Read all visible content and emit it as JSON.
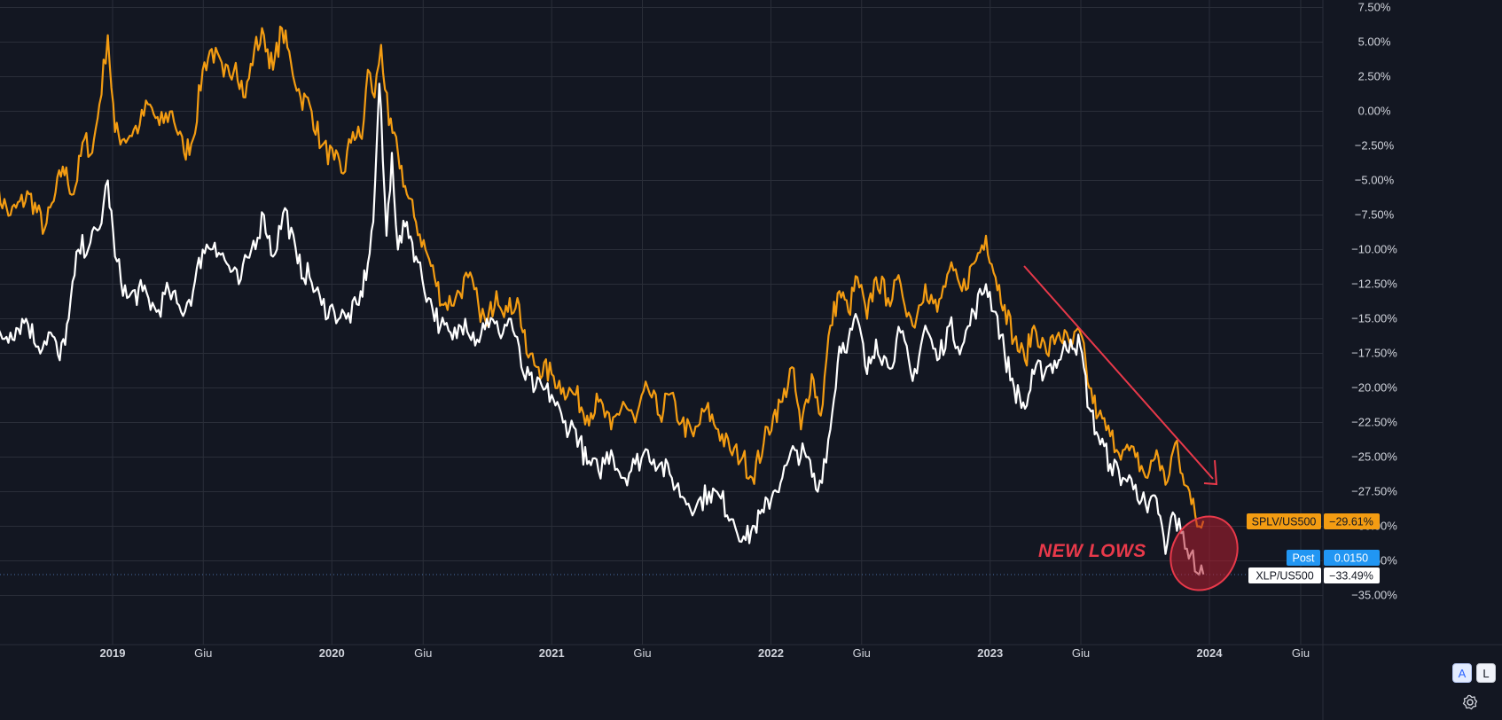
{
  "chart_data": {
    "type": "line",
    "ylim": [
      -37,
      7.5
    ],
    "y_ticks": [
      "7.50%",
      "5.00%",
      "2.50%",
      "0.00%",
      "−2.50%",
      "−5.00%",
      "−7.50%",
      "−10.00%",
      "−12.50%",
      "−15.00%",
      "−17.50%",
      "−20.00%",
      "−22.50%",
      "−25.00%",
      "−27.50%",
      "−30.00%",
      "−32.50%",
      "−35.00%"
    ],
    "y_tick_values": [
      7.5,
      5,
      2.5,
      0,
      -2.5,
      -5,
      -7.5,
      -10,
      -12.5,
      -15,
      -17.5,
      -20,
      -22.5,
      -25,
      -27.5,
      -30,
      -32.5,
      -35
    ],
    "x_range": [
      "2018-06-15",
      "2024-07-15"
    ],
    "x_ticks": [
      {
        "label": "2019",
        "date": "2019-01-01",
        "bold": true
      },
      {
        "label": "Giu",
        "date": "2019-06-01",
        "bold": false
      },
      {
        "label": "2020",
        "date": "2020-01-01",
        "bold": true
      },
      {
        "label": "Giu",
        "date": "2020-06-01",
        "bold": false
      },
      {
        "label": "2021",
        "date": "2021-01-01",
        "bold": true
      },
      {
        "label": "Giu",
        "date": "2021-06-01",
        "bold": false
      },
      {
        "label": "2022",
        "date": "2022-01-01",
        "bold": true
      },
      {
        "label": "Giu",
        "date": "2022-06-01",
        "bold": false
      },
      {
        "label": "2023",
        "date": "2023-01-01",
        "bold": true
      },
      {
        "label": "Giu",
        "date": "2023-06-01",
        "bold": false
      },
      {
        "label": "2024",
        "date": "2024-01-01",
        "bold": true
      },
      {
        "label": "Giu",
        "date": "2024-06-01",
        "bold": false
      }
    ],
    "grid": true,
    "series": [
      {
        "name": "SPLV/US500",
        "color": "#f39c12",
        "last_value": "−29.61%",
        "points": [
          [
            "2018-06-18",
            -5.5
          ],
          [
            "2018-07-15",
            -7.5
          ],
          [
            "2018-08-15",
            -6.0
          ],
          [
            "2018-09-10",
            -8.5
          ],
          [
            "2018-09-25",
            -6.5
          ],
          [
            "2018-10-10",
            -4.0
          ],
          [
            "2018-10-28",
            -6.0
          ],
          [
            "2018-11-15",
            -2.0
          ],
          [
            "2018-11-28",
            -3.0
          ],
          [
            "2018-12-10",
            0.5
          ],
          [
            "2018-12-24",
            5.5
          ],
          [
            "2019-01-05",
            -1.5
          ],
          [
            "2019-01-20",
            -2.0
          ],
          [
            "2019-02-15",
            -1.0
          ],
          [
            "2019-03-01",
            0.5
          ],
          [
            "2019-03-20",
            -1.0
          ],
          [
            "2019-04-10",
            0.0
          ],
          [
            "2019-04-30",
            -3.0
          ],
          [
            "2019-05-15",
            -2.0
          ],
          [
            "2019-05-31",
            3.0
          ],
          [
            "2019-06-15",
            4.5
          ],
          [
            "2019-07-05",
            2.5
          ],
          [
            "2019-07-25",
            3.5
          ],
          [
            "2019-08-10",
            1.0
          ],
          [
            "2019-08-25",
            4.5
          ],
          [
            "2019-09-10",
            5.5
          ],
          [
            "2019-09-25",
            3.0
          ],
          [
            "2019-10-10",
            6.0
          ],
          [
            "2019-10-25",
            3.5
          ],
          [
            "2019-11-10",
            1.0
          ],
          [
            "2019-11-25",
            0.5
          ],
          [
            "2019-12-15",
            -2.5
          ],
          [
            "2020-01-05",
            -3.5
          ],
          [
            "2020-01-20",
            -4.5
          ],
          [
            "2020-02-05",
            -1.5
          ],
          [
            "2020-02-20",
            -2.0
          ],
          [
            "2020-03-01",
            3.0
          ],
          [
            "2020-03-12",
            1.0
          ],
          [
            "2020-03-23",
            4.8
          ],
          [
            "2020-04-05",
            -1.0
          ],
          [
            "2020-04-20",
            -3.0
          ],
          [
            "2020-05-05",
            -6.0
          ],
          [
            "2020-05-20",
            -8.0
          ],
          [
            "2020-06-05",
            -10.0
          ],
          [
            "2020-06-20",
            -12.0
          ],
          [
            "2020-07-05",
            -14.0
          ],
          [
            "2020-07-25",
            -13.5
          ],
          [
            "2020-08-15",
            -12.0
          ],
          [
            "2020-09-01",
            -14.0
          ],
          [
            "2020-09-15",
            -15.5
          ],
          [
            "2020-10-01",
            -13.0
          ],
          [
            "2020-10-20",
            -14.5
          ],
          [
            "2020-11-05",
            -13.5
          ],
          [
            "2020-11-20",
            -17.5
          ],
          [
            "2020-12-10",
            -18.5
          ],
          [
            "2021-01-01",
            -19.0
          ],
          [
            "2021-01-20",
            -20.0
          ],
          [
            "2021-02-10",
            -20.5
          ],
          [
            "2021-03-01",
            -22.0
          ],
          [
            "2021-03-20",
            -21.0
          ],
          [
            "2021-04-10",
            -23.0
          ],
          [
            "2021-04-30",
            -21.0
          ],
          [
            "2021-05-20",
            -22.5
          ],
          [
            "2021-06-10",
            -20.0
          ],
          [
            "2021-06-30",
            -22.0
          ],
          [
            "2021-07-15",
            -20.5
          ],
          [
            "2021-08-05",
            -22.5
          ],
          [
            "2021-08-25",
            -23.5
          ],
          [
            "2021-09-15",
            -21.5
          ],
          [
            "2021-10-05",
            -23.0
          ],
          [
            "2021-10-25",
            -24.5
          ],
          [
            "2021-11-15",
            -25.0
          ],
          [
            "2021-12-01",
            -26.5
          ],
          [
            "2021-12-20",
            -24.0
          ],
          [
            "2022-01-05",
            -22.0
          ],
          [
            "2022-01-20",
            -21.0
          ],
          [
            "2022-02-05",
            -18.5
          ],
          [
            "2022-02-20",
            -23.0
          ],
          [
            "2022-03-10",
            -19.0
          ],
          [
            "2022-03-25",
            -22.0
          ],
          [
            "2022-04-10",
            -15.5
          ],
          [
            "2022-04-25",
            -13.0
          ],
          [
            "2022-05-10",
            -14.5
          ],
          [
            "2022-05-25",
            -12.0
          ],
          [
            "2022-06-10",
            -15.0
          ],
          [
            "2022-06-25",
            -12.0
          ],
          [
            "2022-07-15",
            -13.5
          ],
          [
            "2022-08-05",
            -12.5
          ],
          [
            "2022-08-25",
            -15.5
          ],
          [
            "2022-09-15",
            -12.5
          ],
          [
            "2022-10-05",
            -14.5
          ],
          [
            "2022-10-25",
            -11.5
          ],
          [
            "2022-11-15",
            -13.0
          ],
          [
            "2022-12-05",
            -11.0
          ],
          [
            "2022-12-25",
            -9.0
          ],
          [
            "2023-01-10",
            -12.0
          ],
          [
            "2023-01-25",
            -14.0
          ],
          [
            "2023-02-10",
            -16.5
          ],
          [
            "2023-02-28",
            -18.0
          ],
          [
            "2023-03-15",
            -15.5
          ],
          [
            "2023-04-05",
            -17.5
          ],
          [
            "2023-04-25",
            -16.0
          ],
          [
            "2023-05-15",
            -17.0
          ],
          [
            "2023-05-31",
            -16.0
          ],
          [
            "2023-06-15",
            -20.0
          ],
          [
            "2023-06-30",
            -22.0
          ],
          [
            "2023-07-20",
            -23.5
          ],
          [
            "2023-08-10",
            -24.5
          ],
          [
            "2023-08-31",
            -25.0
          ],
          [
            "2023-09-20",
            -26.5
          ],
          [
            "2023-10-05",
            -24.5
          ],
          [
            "2023-10-20",
            -27.0
          ],
          [
            "2023-11-05",
            -24.0
          ],
          [
            "2023-11-20",
            -27.0
          ],
          [
            "2023-12-05",
            -28.0
          ],
          [
            "2023-12-15",
            -30.0
          ],
          [
            "2023-12-22",
            -29.61
          ]
        ]
      },
      {
        "name": "XLP/US500",
        "color": "#ffffff",
        "last_value": "−33.49%",
        "points": [
          [
            "2018-06-18",
            -16.5
          ],
          [
            "2018-07-15",
            -16.0
          ],
          [
            "2018-08-10",
            -15.0
          ],
          [
            "2018-08-30",
            -17.0
          ],
          [
            "2018-09-20",
            -16.0
          ],
          [
            "2018-10-05",
            -18.0
          ],
          [
            "2018-10-20",
            -15.0
          ],
          [
            "2018-11-05",
            -10.0
          ],
          [
            "2018-11-25",
            -9.5
          ],
          [
            "2018-12-10",
            -8.5
          ],
          [
            "2018-12-24",
            -5.0
          ],
          [
            "2019-01-05",
            -10.5
          ],
          [
            "2019-01-25",
            -13.5
          ],
          [
            "2019-02-20",
            -13.0
          ],
          [
            "2019-03-15",
            -14.5
          ],
          [
            "2019-04-05",
            -13.0
          ],
          [
            "2019-04-25",
            -14.5
          ],
          [
            "2019-05-15",
            -13.0
          ],
          [
            "2019-05-31",
            -10.0
          ],
          [
            "2019-06-20",
            -9.5
          ],
          [
            "2019-07-10",
            -11.0
          ],
          [
            "2019-07-30",
            -12.5
          ],
          [
            "2019-08-20",
            -10.0
          ],
          [
            "2019-09-10",
            -7.5
          ],
          [
            "2019-09-25",
            -10.5
          ],
          [
            "2019-10-15",
            -7.0
          ],
          [
            "2019-11-05",
            -11.0
          ],
          [
            "2019-11-25",
            -12.0
          ],
          [
            "2019-12-15",
            -14.0
          ],
          [
            "2020-01-05",
            -14.5
          ],
          [
            "2020-01-25",
            -15.0
          ],
          [
            "2020-02-15",
            -14.0
          ],
          [
            "2020-03-01",
            -11.0
          ],
          [
            "2020-03-10",
            -8.0
          ],
          [
            "2020-03-20",
            2.0
          ],
          [
            "2020-04-01",
            -9.0
          ],
          [
            "2020-04-10",
            -3.0
          ],
          [
            "2020-04-20",
            -10.0
          ],
          [
            "2020-05-05",
            -8.0
          ],
          [
            "2020-05-20",
            -10.5
          ],
          [
            "2020-06-10",
            -13.5
          ],
          [
            "2020-06-30",
            -15.5
          ],
          [
            "2020-07-20",
            -16.5
          ],
          [
            "2020-08-10",
            -15.0
          ],
          [
            "2020-08-30",
            -16.5
          ],
          [
            "2020-09-15",
            -15.0
          ],
          [
            "2020-10-05",
            -16.0
          ],
          [
            "2020-10-25",
            -15.0
          ],
          [
            "2020-11-15",
            -19.0
          ],
          [
            "2020-12-05",
            -20.0
          ],
          [
            "2021-01-01",
            -20.5
          ],
          [
            "2021-01-20",
            -22.5
          ],
          [
            "2021-02-10",
            -23.0
          ],
          [
            "2021-03-01",
            -25.5
          ],
          [
            "2021-03-20",
            -26.0
          ],
          [
            "2021-04-10",
            -24.5
          ],
          [
            "2021-04-30",
            -26.5
          ],
          [
            "2021-05-20",
            -25.5
          ],
          [
            "2021-06-10",
            -24.5
          ],
          [
            "2021-06-30",
            -25.5
          ],
          [
            "2021-07-20",
            -26.5
          ],
          [
            "2021-08-10",
            -28.0
          ],
          [
            "2021-08-30",
            -28.5
          ],
          [
            "2021-09-20",
            -27.5
          ],
          [
            "2021-10-10",
            -28.0
          ],
          [
            "2021-10-30",
            -29.5
          ],
          [
            "2021-11-20",
            -31.0
          ],
          [
            "2021-12-05",
            -30.0
          ],
          [
            "2021-12-20",
            -29.0
          ],
          [
            "2022-01-05",
            -27.5
          ],
          [
            "2022-01-20",
            -26.5
          ],
          [
            "2022-02-10",
            -24.5
          ],
          [
            "2022-03-01",
            -25.0
          ],
          [
            "2022-03-20",
            -27.5
          ],
          [
            "2022-04-10",
            -23.0
          ],
          [
            "2022-04-25",
            -17.0
          ],
          [
            "2022-05-10",
            -16.5
          ],
          [
            "2022-05-25",
            -15.0
          ],
          [
            "2022-06-10",
            -19.0
          ],
          [
            "2022-06-25",
            -16.5
          ],
          [
            "2022-07-15",
            -18.5
          ],
          [
            "2022-08-05",
            -16.0
          ],
          [
            "2022-08-25",
            -19.5
          ],
          [
            "2022-09-15",
            -15.5
          ],
          [
            "2022-10-05",
            -18.0
          ],
          [
            "2022-10-25",
            -15.5
          ],
          [
            "2022-11-15",
            -17.0
          ],
          [
            "2022-12-05",
            -14.5
          ],
          [
            "2022-12-25",
            -12.5
          ],
          [
            "2023-01-10",
            -14.5
          ],
          [
            "2023-01-25",
            -17.5
          ],
          [
            "2023-02-10",
            -20.0
          ],
          [
            "2023-02-28",
            -21.5
          ],
          [
            "2023-03-15",
            -19.0
          ],
          [
            "2023-04-05",
            -18.5
          ],
          [
            "2023-04-25",
            -18.0
          ],
          [
            "2023-05-15",
            -16.5
          ],
          [
            "2023-05-31",
            -17.0
          ],
          [
            "2023-06-15",
            -21.5
          ],
          [
            "2023-06-30",
            -23.5
          ],
          [
            "2023-07-20",
            -25.5
          ],
          [
            "2023-08-10",
            -26.5
          ],
          [
            "2023-08-31",
            -27.0
          ],
          [
            "2023-09-20",
            -29.0
          ],
          [
            "2023-10-05",
            -28.0
          ],
          [
            "2023-10-20",
            -32.0
          ],
          [
            "2023-11-01",
            -29.0
          ],
          [
            "2023-11-15",
            -30.5
          ],
          [
            "2023-12-01",
            -32.0
          ],
          [
            "2023-12-15",
            -33.5
          ],
          [
            "2023-12-22",
            -33.49
          ]
        ]
      }
    ],
    "price_line_value": -33.49,
    "annotation": "NEW LOWS",
    "labels": [
      {
        "name": "SPLV/US500",
        "value": "−29.61%",
        "bg": "#f39c12",
        "fg": "#131722"
      },
      {
        "name": "Post",
        "value": "0.0150",
        "bg": "#2196f3",
        "fg": "#ffffff"
      },
      {
        "name": "XLP/US500",
        "value": "−33.49%",
        "bg": "#ffffff",
        "fg": "#131722"
      }
    ]
  },
  "controls": {
    "auto_label": "A",
    "log_label": "L",
    "settings_icon": "gear-icon"
  },
  "colors": {
    "background": "#131722",
    "grid": "#2a2e39",
    "text": "#d1d4dc",
    "annotation": "#e8394a"
  }
}
